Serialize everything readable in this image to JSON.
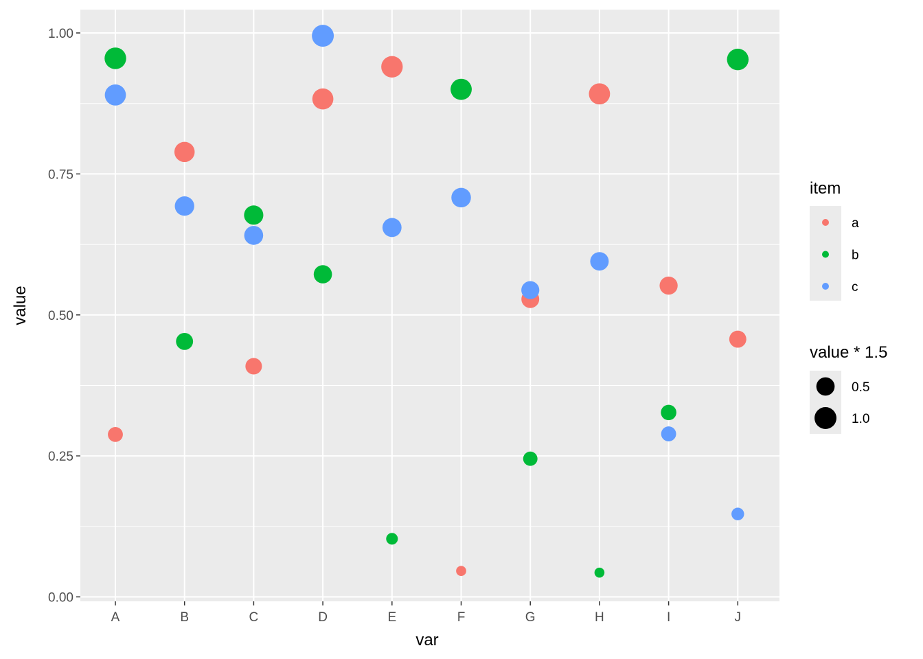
{
  "chart_data": {
    "type": "scatter",
    "xlabel": "var",
    "ylabel": "value",
    "categories": [
      "A",
      "B",
      "C",
      "D",
      "E",
      "F",
      "G",
      "H",
      "I",
      "J"
    ],
    "ylim": [
      -0.02,
      1.04
    ],
    "yticks": [
      0.0,
      0.25,
      0.5,
      0.75,
      1.0
    ],
    "ytick_labels": [
      "0.00",
      "0.25",
      "0.50",
      "0.75",
      "1.00"
    ],
    "grid": true,
    "series": [
      {
        "name": "a",
        "color": "#F8766D",
        "values": [
          0.288,
          0.789,
          0.409,
          0.883,
          0.94,
          0.046,
          0.528,
          0.892,
          0.552,
          0.457
        ]
      },
      {
        "name": "b",
        "color": "#00BA38",
        "values": [
          0.955,
          0.453,
          0.677,
          0.572,
          0.103,
          0.9,
          0.245,
          0.043,
          0.327,
          0.953
        ]
      },
      {
        "name": "c",
        "color": "#619CFF",
        "values": [
          0.89,
          0.693,
          0.641,
          0.995,
          0.655,
          0.708,
          0.544,
          0.595,
          0.289,
          0.147
        ]
      }
    ],
    "size_aesthetic": "value * 1.5",
    "legends": [
      {
        "title": "item",
        "type": "color",
        "entries": [
          "a",
          "b",
          "c"
        ],
        "placement": "right"
      },
      {
        "title": "value * 1.5",
        "type": "size",
        "entries": [
          "0.5",
          "1.0"
        ],
        "values": [
          0.5,
          1.0
        ],
        "placement": "right"
      }
    ]
  }
}
